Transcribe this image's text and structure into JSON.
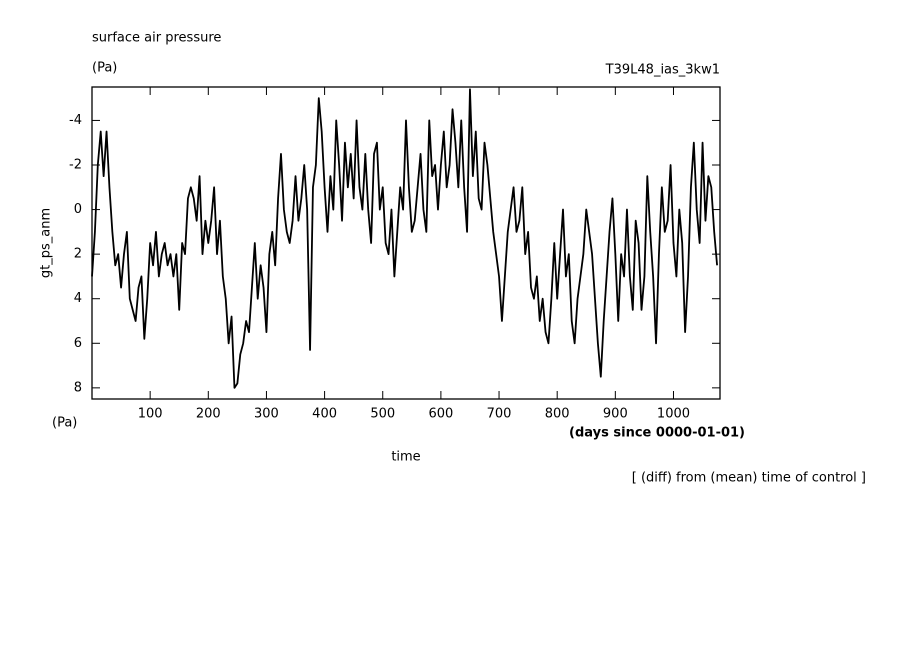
{
  "chart_data": {
    "type": "line",
    "title": "surface air pressure",
    "units": "(Pa)",
    "run_label": "T39L48_ias_3kw1",
    "y_label": "gt_ps_anm",
    "y_units": "(Pa)",
    "x_label": "time",
    "x_units": "(days since 0000-01-01)",
    "note": "[ (diff) from (mean) time of control ]",
    "color": "#000000",
    "y_inverted": true,
    "xlim": [
      0,
      1080
    ],
    "ylim": [
      -5.5,
      8.5
    ],
    "xticks": [
      100,
      200,
      300,
      400,
      500,
      600,
      700,
      800,
      900,
      1000
    ],
    "yticks": [
      -4,
      -2,
      0,
      2,
      4,
      6,
      8
    ],
    "x": [
      0,
      5,
      10,
      15,
      20,
      25,
      30,
      35,
      40,
      45,
      50,
      55,
      60,
      65,
      70,
      75,
      80,
      85,
      90,
      95,
      100,
      105,
      110,
      115,
      120,
      125,
      130,
      135,
      140,
      145,
      150,
      155,
      160,
      165,
      170,
      175,
      180,
      185,
      190,
      195,
      200,
      205,
      210,
      215,
      220,
      225,
      230,
      235,
      240,
      245,
      250,
      255,
      260,
      265,
      270,
      275,
      280,
      285,
      290,
      295,
      300,
      305,
      310,
      315,
      320,
      325,
      330,
      335,
      340,
      345,
      350,
      355,
      360,
      365,
      370,
      375,
      380,
      385,
      390,
      395,
      400,
      405,
      410,
      415,
      420,
      425,
      430,
      435,
      440,
      445,
      450,
      455,
      460,
      465,
      470,
      475,
      480,
      485,
      490,
      495,
      500,
      505,
      510,
      515,
      520,
      525,
      530,
      535,
      540,
      545,
      550,
      555,
      560,
      565,
      570,
      575,
      580,
      585,
      590,
      595,
      600,
      605,
      610,
      615,
      620,
      625,
      630,
      635,
      640,
      645,
      650,
      655,
      660,
      665,
      670,
      675,
      680,
      685,
      690,
      695,
      700,
      705,
      710,
      715,
      720,
      725,
      730,
      735,
      740,
      745,
      750,
      755,
      760,
      765,
      770,
      775,
      780,
      785,
      790,
      795,
      800,
      805,
      810,
      815,
      820,
      825,
      830,
      835,
      840,
      845,
      850,
      855,
      860,
      865,
      870,
      875,
      880,
      885,
      890,
      895,
      900,
      905,
      910,
      915,
      920,
      925,
      930,
      935,
      940,
      945,
      950,
      955,
      960,
      965,
      970,
      975,
      980,
      985,
      990,
      995,
      1000,
      1005,
      1010,
      1015,
      1020,
      1025,
      1030,
      1035,
      1040,
      1045,
      1050,
      1055,
      1060,
      1065,
      1070,
      1075
    ],
    "values": [
      3,
      1,
      -2,
      -3.5,
      -1.5,
      -3.5,
      -1,
      1,
      2.5,
      2,
      3.5,
      2,
      1,
      4,
      4.5,
      5,
      3.5,
      3,
      5.8,
      4,
      1.5,
      2.5,
      1,
      3,
      2,
      1.5,
      2.5,
      2,
      3,
      2,
      4.5,
      1.5,
      2,
      -0.5,
      -1,
      -0.5,
      0.5,
      -1.5,
      2,
      0.5,
      1.5,
      0.5,
      -1,
      2,
      0.5,
      3,
      4,
      6,
      4.8,
      8,
      7.8,
      6.5,
      6,
      5,
      5.5,
      3.5,
      1.5,
      4,
      2.5,
      3.5,
      5.5,
      2,
      1,
      2.5,
      -0.5,
      -2.5,
      0,
      1,
      1.5,
      0.5,
      -1.5,
      0.5,
      -0.5,
      -2,
      0,
      6.3,
      -1,
      -2,
      -5,
      -3.5,
      -1,
      1,
      -1.5,
      0,
      -4,
      -2,
      0.5,
      -3,
      -1,
      -2.5,
      -0.5,
      -4,
      -1,
      0,
      -2.5,
      0,
      1.5,
      -2.5,
      -3,
      0,
      -1,
      1.5,
      2,
      0,
      3,
      1,
      -1,
      0,
      -4,
      -1,
      1,
      0.5,
      -1,
      -2.5,
      0,
      1,
      -4,
      -1.5,
      -2,
      0,
      -2,
      -3.5,
      -1,
      -2,
      -4.5,
      -3,
      -1,
      -4,
      -1,
      1,
      -5.4,
      -1.5,
      -3.5,
      -0.5,
      0,
      -3,
      -2,
      -0.5,
      1,
      2,
      3,
      5,
      3,
      1,
      0,
      -1,
      1,
      0.5,
      -1,
      2,
      1,
      3.5,
      4,
      3,
      5,
      4,
      5.5,
      6,
      4,
      1.5,
      4,
      2,
      0,
      3,
      2,
      5,
      6,
      4,
      3,
      2,
      0,
      1,
      2,
      4,
      6,
      7.5,
      5,
      3,
      1,
      -0.5,
      2,
      5,
      2,
      3,
      0,
      3,
      4.5,
      0.5,
      1.5,
      4.5,
      3,
      -1.5,
      1,
      3,
      6,
      2,
      -1,
      1,
      0.5,
      -2,
      1.5,
      3,
      0,
      1.5,
      5.5,
      3,
      -1,
      -3,
      0,
      1.5,
      -3,
      0.5,
      -1.5,
      -1,
      1,
      2.5
    ]
  }
}
